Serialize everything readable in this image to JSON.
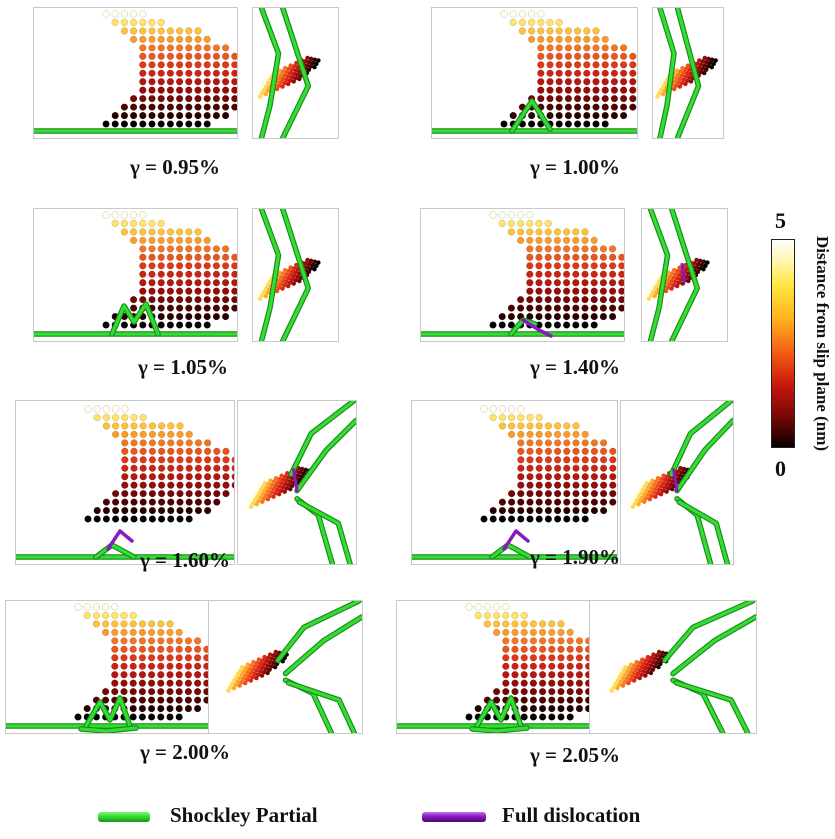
{
  "panels": [
    {
      "caption": "γ = 0.95%",
      "stage": 0.95
    },
    {
      "caption": "γ = 1.00%",
      "stage": 1.0
    },
    {
      "caption": "γ = 1.05%",
      "stage": 1.05
    },
    {
      "caption": "γ = 1.40%",
      "stage": 1.4
    },
    {
      "caption": "γ = 1.60%",
      "stage": 1.6
    },
    {
      "caption": "γ = 1.90%",
      "stage": 1.9
    },
    {
      "caption": "γ = 2.00%",
      "stage": 2.0
    },
    {
      "caption": "γ = 2.05%",
      "stage": 2.05
    }
  ],
  "colorbar": {
    "label": "Distance from slip plane (nm)",
    "max_label": "5",
    "min_label": "0",
    "min": 0,
    "max": 5
  },
  "legend": {
    "shockley": {
      "label": "Shockley Partial",
      "color": "#33dd33"
    },
    "full": {
      "label": "Full dislocation",
      "color": "#8a1ac0"
    }
  }
}
